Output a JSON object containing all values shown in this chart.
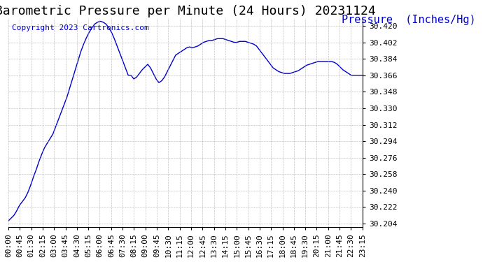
{
  "title": "Barometric Pressure per Minute (24 Hours) 20231124",
  "ylabel": "Pressure  (Inches/Hg)",
  "copyright_text": "Copyright 2023 Cartronics.com",
  "line_color": "#0000CC",
  "ylabel_color": "#0000CC",
  "copyright_color": "#0000CC",
  "background_color": "#ffffff",
  "grid_color": "#aaaaaa",
  "title_fontsize": 13,
  "ylabel_fontsize": 11,
  "copyright_fontsize": 8,
  "tick_fontsize": 8,
  "ylim_min": 30.2,
  "ylim_max": 30.428,
  "ytick_start": 30.204,
  "ytick_step": 0.018,
  "xtick_labels": [
    "00:00",
    "00:45",
    "01:30",
    "02:15",
    "03:00",
    "03:45",
    "04:30",
    "05:15",
    "06:00",
    "06:45",
    "07:30",
    "08:15",
    "09:00",
    "09:45",
    "10:30",
    "11:15",
    "12:00",
    "12:45",
    "13:30",
    "14:15",
    "15:00",
    "15:45",
    "16:30",
    "17:15",
    "18:00",
    "18:45",
    "19:30",
    "20:15",
    "21:00",
    "21:45",
    "22:30",
    "23:15"
  ],
  "pressure_data": [
    30.207,
    30.21,
    30.213,
    30.218,
    30.224,
    30.228,
    30.232,
    30.238,
    30.246,
    30.255,
    30.263,
    30.272,
    30.28,
    30.287,
    30.292,
    30.297,
    30.302,
    30.31,
    30.318,
    30.326,
    30.334,
    30.342,
    30.352,
    30.362,
    30.372,
    30.382,
    30.392,
    30.4,
    30.407,
    30.413,
    30.418,
    30.422,
    30.424,
    30.425,
    30.424,
    30.422,
    30.418,
    30.413,
    30.406,
    30.398,
    30.39,
    30.382,
    30.374,
    30.366,
    30.366,
    30.362,
    30.364,
    30.368,
    30.372,
    30.375,
    30.378,
    30.374,
    30.368,
    30.362,
    30.358,
    30.36,
    30.364,
    30.37,
    30.376,
    30.382,
    30.388,
    30.39,
    30.392,
    30.394,
    30.396,
    30.397,
    30.396,
    30.397,
    30.398,
    30.4,
    30.402,
    30.403,
    30.404,
    30.404,
    30.405,
    30.406,
    30.406,
    30.406,
    30.405,
    30.404,
    30.403,
    30.402,
    30.402,
    30.403,
    30.403,
    30.403,
    30.402,
    30.401,
    30.4,
    30.398,
    30.394,
    30.39,
    30.386,
    30.382,
    30.378,
    30.374,
    30.372,
    30.37,
    30.369,
    30.368,
    30.368,
    30.368,
    30.369,
    30.37,
    30.371,
    30.373,
    30.375,
    30.377,
    30.378,
    30.379,
    30.38,
    30.381,
    30.381,
    30.381,
    30.381,
    30.381,
    30.381,
    30.38,
    30.378,
    30.375,
    30.372,
    30.37,
    30.368,
    30.366,
    30.366,
    30.366,
    30.366,
    30.366
  ]
}
